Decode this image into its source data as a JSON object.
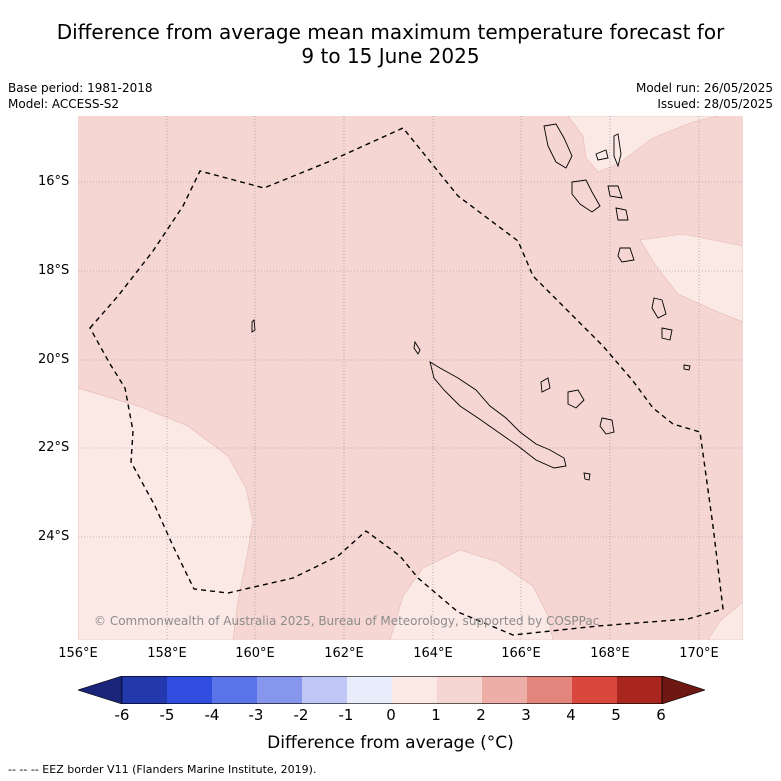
{
  "title_line1": "Difference from average mean maximum temperature forecast for",
  "title_line2": "9 to 15 June 2025",
  "meta": {
    "base_period": "Base period: 1981-2018",
    "model": "Model: ACCESS-S2",
    "model_run": "Model run: 26/05/2025",
    "issued": "Issued: 28/05/2025"
  },
  "map": {
    "lat_ticks": [
      "16°S",
      "18°S",
      "20°S",
      "22°S",
      "24°S"
    ],
    "lon_ticks": [
      "156°E",
      "158°E",
      "160°E",
      "162°E",
      "164°E",
      "166°E",
      "168°E",
      "170°E"
    ],
    "copyright": "© Commonwealth of Australia 2025, Bureau of Meteorology, supported by COSPPac",
    "colors": {
      "anomaly_0_1": "#fbe9e6",
      "anomaly_1_2": "#f5d6d2",
      "gridline": "#8a8a8a",
      "eez_border": "#000000"
    }
  },
  "colorbar": {
    "labels": [
      "-6",
      "-5",
      "-4",
      "-3",
      "-2",
      "-1",
      "0",
      "1",
      "2",
      "3",
      "4",
      "5",
      "6"
    ],
    "colors": [
      "#1a2479",
      "#2438ad",
      "#2f4ee0",
      "#5a73e8",
      "#8596ec",
      "#c0c7f4",
      "#e8ecfb",
      "#fbe9e6",
      "#f5d6d2",
      "#edaea8",
      "#e3857c",
      "#d8483c",
      "#a9261f",
      "#6d1812"
    ],
    "title": "Difference from average (°C)"
  },
  "footnote": "-- -- -- EEZ border V11 (Flanders Marine Institute, 2019)."
}
